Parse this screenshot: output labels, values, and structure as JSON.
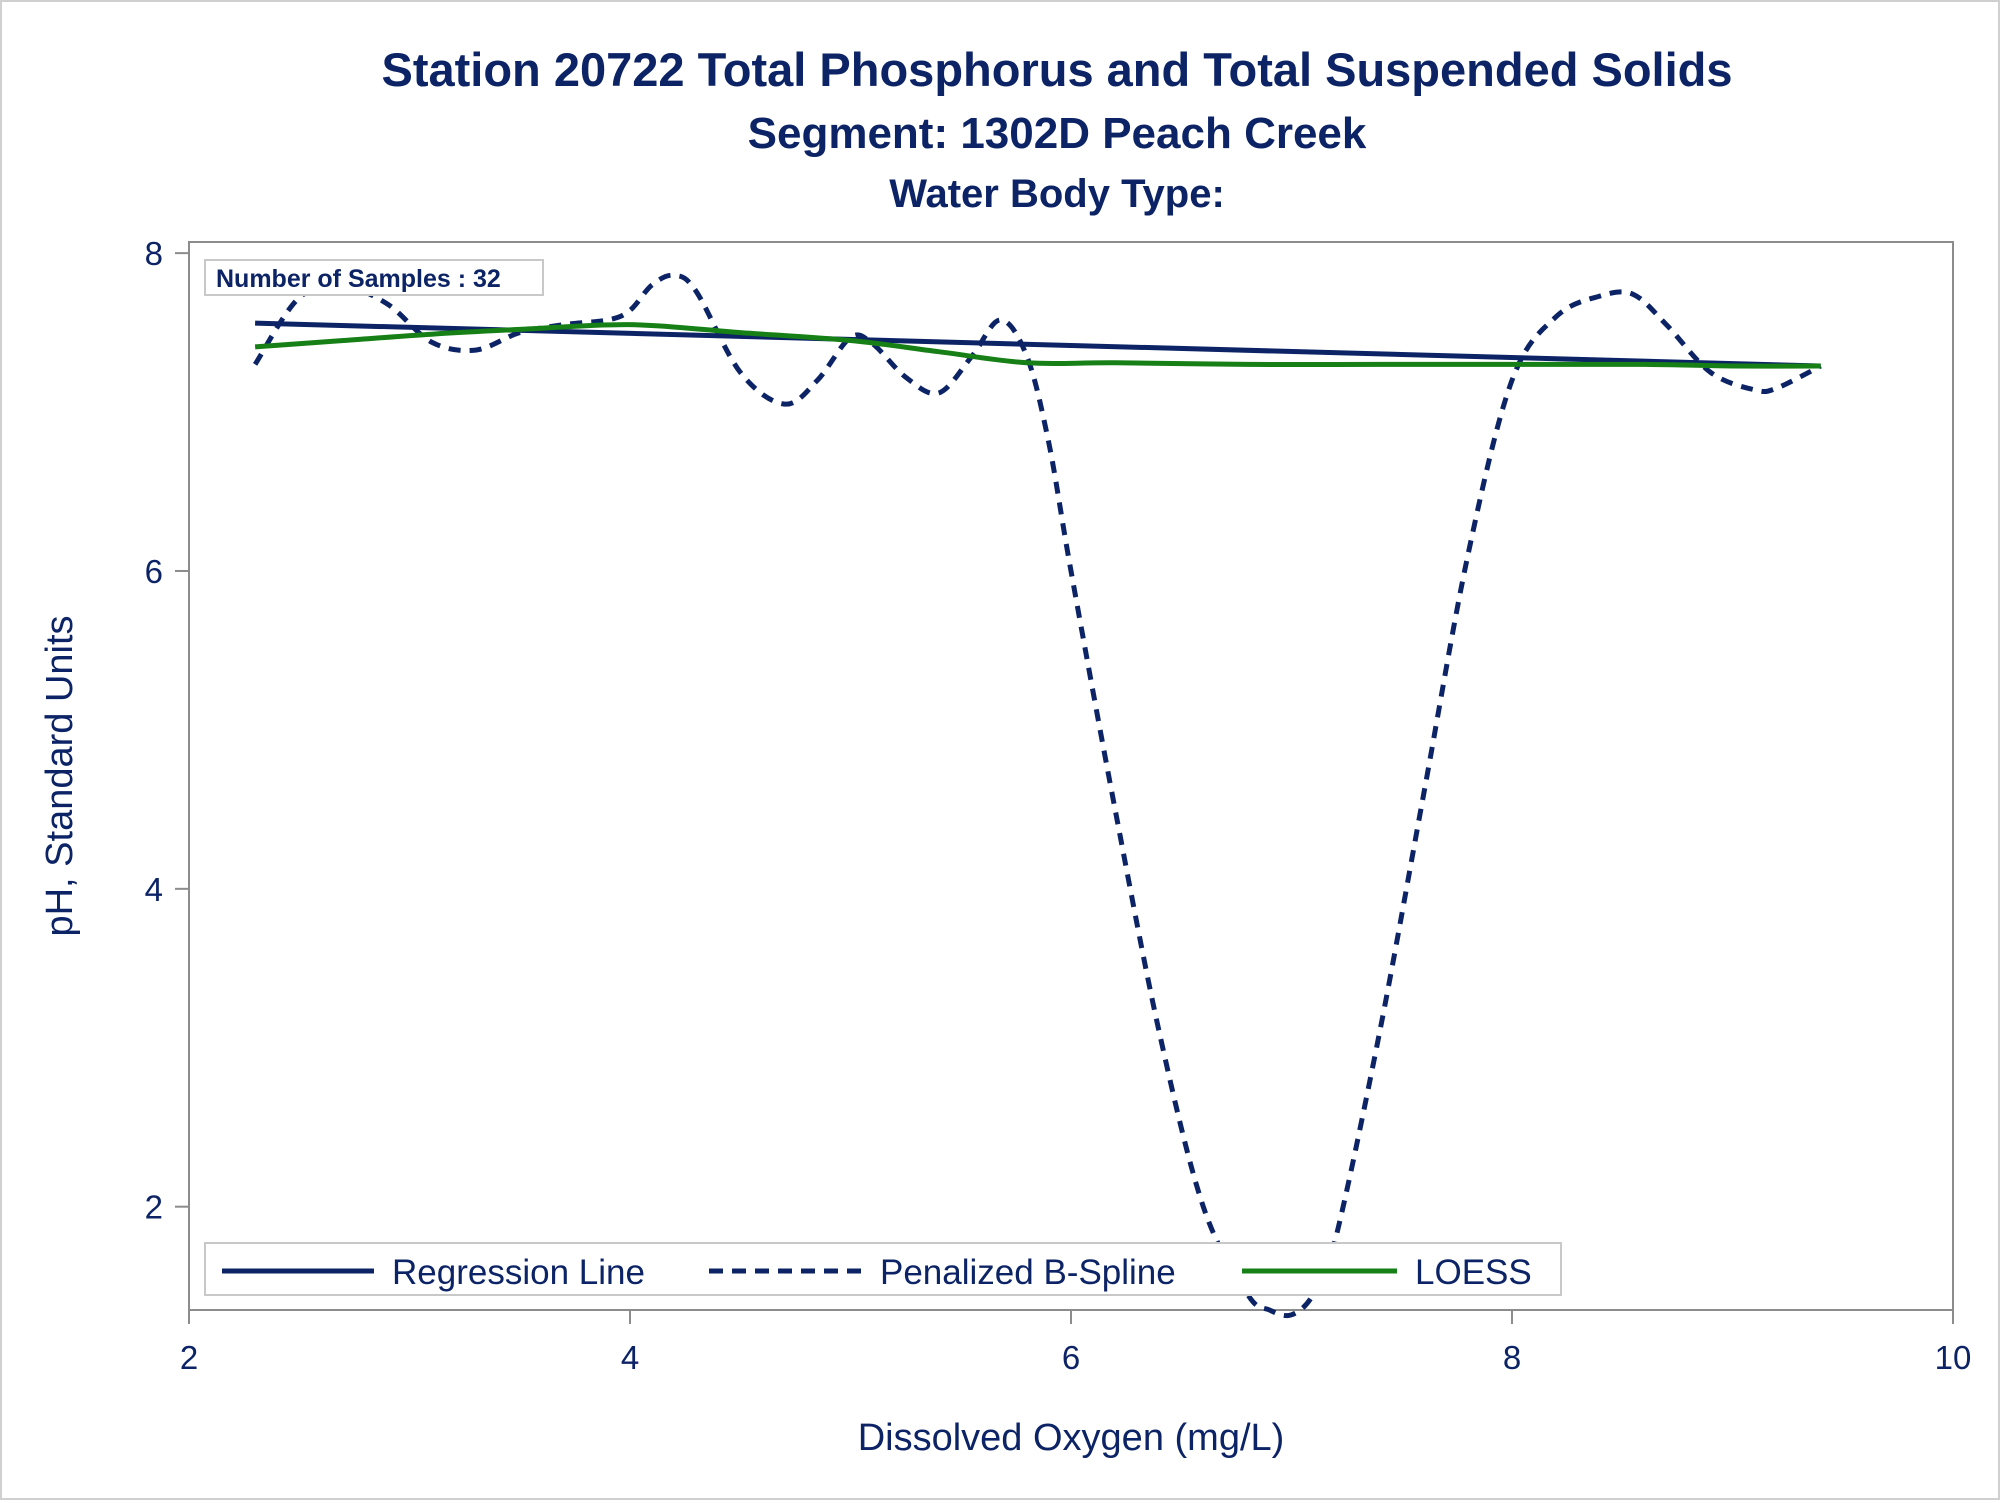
{
  "chart_data": {
    "type": "line",
    "title": "Station 20722  Total Phosphorus and Total Suspended Solids",
    "subtitle": "Segment: 1302D  Peach Creek",
    "subtitle2": "Water Body Type:",
    "xlabel": "Dissolved Oxygen (mg/L)",
    "ylabel": "pH, Standard Units",
    "xlim": [
      2,
      10
    ],
    "ylim": [
      1.35,
      8.07
    ],
    "x_ticks": [
      2,
      4,
      6,
      8,
      10
    ],
    "y_ticks": [
      2,
      4,
      6,
      8
    ],
    "x_tick_labels": [
      "2",
      "4",
      "6",
      "8",
      "10"
    ],
    "y_tick_labels": [
      "2",
      "4",
      "6",
      "8"
    ],
    "grid": false,
    "annotation": "Number of Samples : 32",
    "legend_position": "bottom-left-inside",
    "colors": {
      "regression": "#0c2366",
      "spline": "#0c2366",
      "loess": "#168016",
      "text": "#0c2366",
      "axis": "#8c8c8c"
    },
    "series": [
      {
        "name": "Regression Line",
        "style": "solid",
        "color": "#0c2366",
        "x": [
          2.3,
          9.4
        ],
        "y": [
          7.56,
          7.29
        ]
      },
      {
        "name": "Penalized B-Spline",
        "style": "dashed",
        "color": "#0c2366",
        "x": [
          2.3,
          2.5,
          2.7,
          2.9,
          3.1,
          3.3,
          3.5,
          3.7,
          3.9,
          4.0,
          4.1,
          4.2,
          4.3,
          4.5,
          4.7,
          4.85,
          5.0,
          5.1,
          5.25,
          5.4,
          5.55,
          5.68,
          5.8,
          5.9,
          6.0,
          6.2,
          6.4,
          6.6,
          6.8,
          6.9,
          7.0,
          7.1,
          7.2,
          7.4,
          7.6,
          7.8,
          8.0,
          8.2,
          8.4,
          8.55,
          8.7,
          8.9,
          9.1,
          9.2,
          9.4
        ],
        "y": [
          7.3,
          7.72,
          7.79,
          7.68,
          7.44,
          7.39,
          7.5,
          7.55,
          7.58,
          7.64,
          7.8,
          7.86,
          7.76,
          7.25,
          7.05,
          7.2,
          7.47,
          7.43,
          7.22,
          7.12,
          7.35,
          7.58,
          7.35,
          6.8,
          6.0,
          4.5,
          3.1,
          2.0,
          1.45,
          1.35,
          1.32,
          1.45,
          1.8,
          3.1,
          4.6,
          6.1,
          7.2,
          7.6,
          7.73,
          7.74,
          7.55,
          7.25,
          7.14,
          7.15,
          7.29
        ]
      },
      {
        "name": "LOESS",
        "style": "solid",
        "color": "#168016",
        "x": [
          2.3,
          2.7,
          3.1,
          3.5,
          4.0,
          4.5,
          5.0,
          5.4,
          5.8,
          6.2,
          6.8,
          7.4,
          8.0,
          8.6,
          9.0,
          9.4
        ],
        "y": [
          7.41,
          7.45,
          7.49,
          7.52,
          7.55,
          7.5,
          7.45,
          7.38,
          7.31,
          7.31,
          7.3,
          7.3,
          7.3,
          7.3,
          7.29,
          7.29
        ]
      }
    ]
  }
}
